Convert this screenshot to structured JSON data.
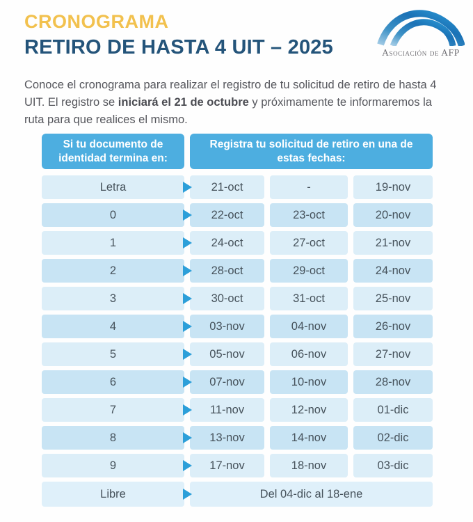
{
  "header": {
    "kicker": "CRONOGRAMA",
    "title": "RETIRO DE HASTA 4 UIT – 2025",
    "kicker_color": "#F2C14E",
    "title_color": "#24547A"
  },
  "logo": {
    "text": "Asociación de AFP",
    "text_color": "#6F6E73",
    "arc_gradient": [
      "#A9CFE8",
      "#3E92C6",
      "#1B72B6",
      "#2C9CD8"
    ]
  },
  "intro": {
    "text_before": "Conoce el cronograma para realizar el registro de tu solicitud de retiro de hasta 4 UIT. El registro se ",
    "text_bold": "iniciará el 21 de octubre",
    "text_after": " y próximamente te informaremos la ruta para que realices el mismo."
  },
  "table": {
    "header_left": "Si tu documento de identidad termina en:",
    "header_right": "Registra tu solicitud de retiro en una de estas fechas:",
    "header_bg": "#4DAEE0",
    "row_light": "#DCEEF8",
    "row_dark": "#C8E4F4",
    "libre_bg": "#DFF0FA",
    "arrow_color": "#2D9FD9",
    "rows": [
      {
        "id": "Letra",
        "dates": [
          "21-oct",
          "-",
          "19-nov"
        ]
      },
      {
        "id": "0",
        "dates": [
          "22-oct",
          "23-oct",
          "20-nov"
        ]
      },
      {
        "id": "1",
        "dates": [
          "24-oct",
          "27-oct",
          "21-nov"
        ]
      },
      {
        "id": "2",
        "dates": [
          "28-oct",
          "29-oct",
          "24-nov"
        ]
      },
      {
        "id": "3",
        "dates": [
          "30-oct",
          "31-oct",
          "25-nov"
        ]
      },
      {
        "id": "4",
        "dates": [
          "03-nov",
          "04-nov",
          "26-nov"
        ]
      },
      {
        "id": "5",
        "dates": [
          "05-nov",
          "06-nov",
          "27-nov"
        ]
      },
      {
        "id": "6",
        "dates": [
          "07-nov",
          "10-nov",
          "28-nov"
        ]
      },
      {
        "id": "7",
        "dates": [
          "11-nov",
          "12-nov",
          "01-dic"
        ]
      },
      {
        "id": "8",
        "dates": [
          "13-nov",
          "14-nov",
          "02-dic"
        ]
      },
      {
        "id": "9",
        "dates": [
          "17-nov",
          "18-nov",
          "03-dic"
        ]
      }
    ],
    "libre_row": {
      "id": "Libre",
      "date_range": "Del 04-dic al 18-ene"
    }
  }
}
